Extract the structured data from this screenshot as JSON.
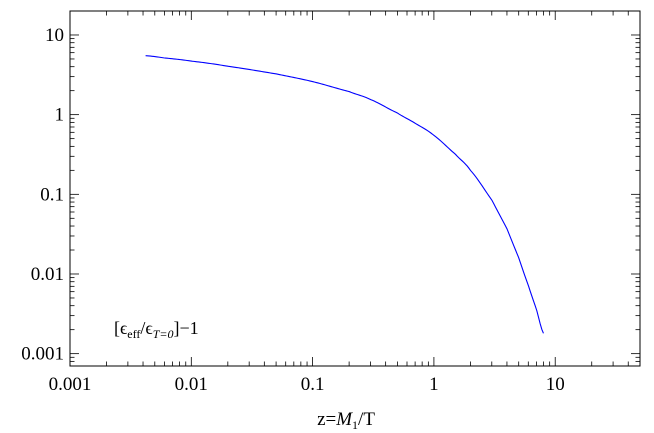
{
  "chart_data": {
    "type": "line",
    "xscale": "log",
    "yscale": "log",
    "xlim": [
      0.001,
      50
    ],
    "ylim": [
      0.0007,
      20
    ],
    "grid": false,
    "xlabel": "z=M₁/T",
    "xlabel_parts": {
      "prefix": "z=",
      "var": "M",
      "sub": "1",
      "suffix": "/T"
    },
    "x_ticks": [
      {
        "value": 0.001,
        "label": "0.001"
      },
      {
        "value": 0.01,
        "label": "0.01"
      },
      {
        "value": 0.1,
        "label": "0.1"
      },
      {
        "value": 1,
        "label": "1"
      },
      {
        "value": 10,
        "label": "10"
      }
    ],
    "y_ticks": [
      {
        "value": 0.001,
        "label": "0.001"
      },
      {
        "value": 0.01,
        "label": "0.01"
      },
      {
        "value": 0.1,
        "label": "0.1"
      },
      {
        "value": 1,
        "label": "1"
      },
      {
        "value": 10,
        "label": "10"
      }
    ],
    "annotation": "[ϵeff/ϵT=0]−1",
    "annotation_parts": {
      "open": "[ϵ",
      "sub1": "eff",
      "mid": "/ϵ",
      "sub2": "T=0",
      "close": "]−1"
    },
    "series": [
      {
        "color": "#0000ff",
        "x": [
          0.0042,
          0.006,
          0.01,
          0.02,
          0.05,
          0.1,
          0.2,
          0.3,
          0.5,
          0.7,
          1,
          1.5,
          2,
          3,
          4,
          5,
          6,
          7,
          8
        ],
        "y": [
          5.5,
          5.15,
          4.7,
          4.05,
          3.25,
          2.6,
          1.95,
          1.55,
          1.05,
          0.78,
          0.55,
          0.32,
          0.2,
          0.085,
          0.037,
          0.016,
          0.0072,
          0.0036,
          0.0018
        ]
      }
    ]
  }
}
